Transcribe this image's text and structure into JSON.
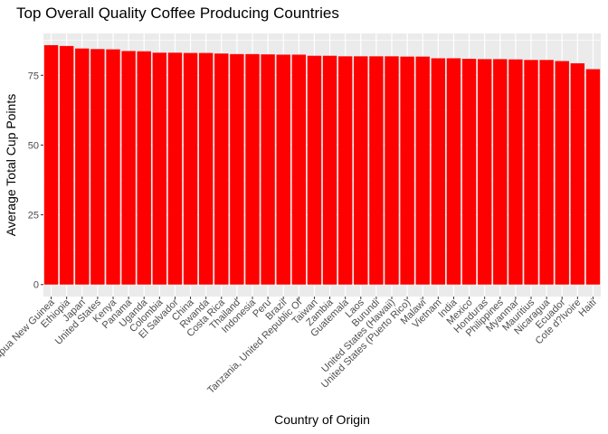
{
  "chart_data": {
    "type": "bar",
    "title": "Top Overall Quality Coffee Producing Countries",
    "xlabel": "Country of Origin",
    "ylabel": "Average Total Cup Points",
    "ylim": [
      -4.3,
      90
    ],
    "yticks": [
      0,
      25,
      50,
      75
    ],
    "grid": true,
    "bar_color": "#ff0000",
    "panel_background": "#ebebeb",
    "grid_color": "#ffffff",
    "categories": [
      "Papua New Guinea",
      "Ethiopia",
      "Japan",
      "United States",
      "Kenya",
      "Panama",
      "Uganda",
      "Colombia",
      "El Salvador",
      "China",
      "Rwanda",
      "Costa Rica",
      "Thailand",
      "Indonesia",
      "Peru",
      "Brazil",
      "Tanzania, United Republic Of",
      "Taiwan",
      "Zambia",
      "Guatemala",
      "Laos",
      "Burundi",
      "United States (Hawaii)",
      "United States (Puerto Rico)",
      "Malawi",
      "Vietnam",
      "India",
      "Mexico",
      "Honduras",
      "Philippines",
      "Myanmar",
      "Mauritius",
      "Nicaragua",
      "Ecuador",
      "Cote d?Ivoire",
      "Haiti"
    ],
    "values": [
      85.8,
      85.5,
      84.6,
      84.4,
      84.3,
      83.7,
      83.6,
      83.1,
      83.1,
      83.0,
      83.0,
      82.8,
      82.6,
      82.6,
      82.5,
      82.4,
      82.4,
      82.0,
      82.0,
      81.8,
      81.8,
      81.8,
      81.8,
      81.7,
      81.7,
      81.1,
      81.1,
      80.9,
      80.8,
      80.8,
      80.7,
      80.5,
      80.5,
      80.1,
      79.3,
      77.2
    ]
  }
}
